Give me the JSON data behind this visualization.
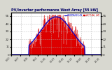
{
  "title": "PV/Inverter performance West Array [55 kW]",
  "legend_actual": "ACTUAL kW",
  "legend_average": "AVERAGE kW",
  "bg_color": "#d8d8d0",
  "plot_bg_color": "#ffffff",
  "grid_color": "#aaaaaa",
  "actual_color": "#cc0000",
  "average_color": "#0000cc",
  "actual_fill": "#dd0000",
  "title_color": "#000066",
  "ylim": [
    0,
    60
  ],
  "yticks": [
    0,
    11,
    22,
    33,
    44,
    55
  ],
  "num_points": 288,
  "figsize": [
    1.6,
    1.0
  ],
  "dpi": 100
}
